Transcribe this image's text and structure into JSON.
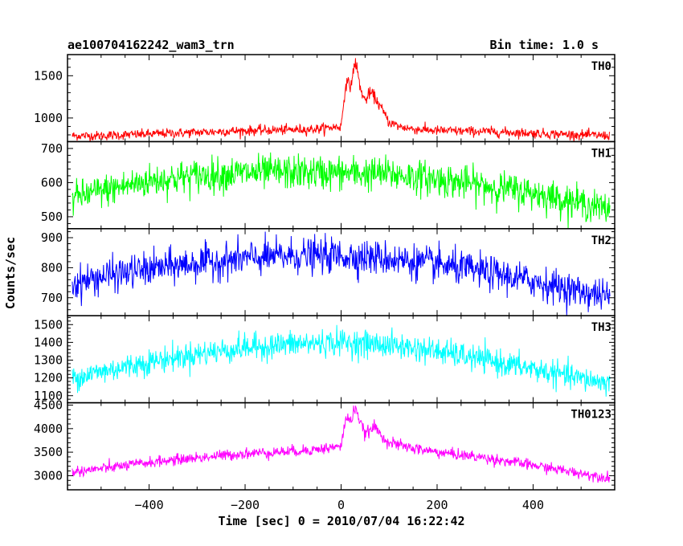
{
  "chart_data": {
    "type": "line",
    "title": "ae100704162242_wam3_trn",
    "bin_time_label": "Bin time: 1.0 s",
    "xlabel": "Time [sec] 0 = 2010/07/04 16:22:42",
    "ylabel": "Counts/sec",
    "xlim": [
      -570,
      570
    ],
    "x_ticks": [
      -400,
      -200,
      0,
      200,
      400
    ],
    "x_tick_labels": [
      "−400",
      "−200",
      "0",
      "200",
      "400"
    ],
    "panels": [
      {
        "label": "TH0",
        "color": "#ff0000",
        "ylim": [
          720,
          1750
        ],
        "y_ticks": [
          1000,
          1500
        ],
        "y_tick_labels": [
          "1000",
          "1500"
        ],
        "series": {
          "x": [
            -560,
            -500,
            -400,
            -300,
            -200,
            -100,
            -50,
            0,
            10,
            20,
            30,
            40,
            50,
            60,
            70,
            80,
            90,
            100,
            120,
            150,
            200,
            300,
            400,
            500,
            560
          ],
          "y": [
            790,
            790,
            810,
            830,
            850,
            860,
            870,
            900,
            1420,
            1380,
            1680,
            1350,
            1200,
            1300,
            1250,
            1150,
            1050,
            950,
            900,
            870,
            850,
            840,
            820,
            800,
            790
          ]
        }
      },
      {
        "label": "TH1",
        "color": "#00ff00",
        "ylim": [
          465,
          720
        ],
        "y_ticks": [
          500,
          600,
          700
        ],
        "y_tick_labels": [
          "500",
          "600",
          "700"
        ],
        "series": {
          "x": [
            -560,
            -500,
            -400,
            -300,
            -200,
            -100,
            0,
            100,
            200,
            300,
            400,
            500,
            560
          ],
          "y": [
            555,
            575,
            605,
            620,
            628,
            630,
            628,
            625,
            610,
            590,
            570,
            540,
            520
          ]
        }
      },
      {
        "label": "TH2",
        "color": "#0000ff",
        "ylim": [
          640,
          930
        ],
        "y_ticks": [
          700,
          800,
          900
        ],
        "y_tick_labels": [
          "700",
          "800",
          "900"
        ],
        "series": {
          "x": [
            -560,
            -500,
            -400,
            -300,
            -200,
            -100,
            0,
            100,
            200,
            300,
            400,
            500,
            560
          ],
          "y": [
            745,
            770,
            795,
            815,
            830,
            840,
            840,
            830,
            810,
            785,
            755,
            720,
            705
          ]
        }
      },
      {
        "label": "TH3",
        "color": "#00ffff",
        "ylim": [
          1060,
          1550
        ],
        "y_ticks": [
          1100,
          1200,
          1300,
          1400,
          1500
        ],
        "y_tick_labels": [
          "1100",
          "1200",
          "1300",
          "1400",
          "1500"
        ],
        "series": {
          "x": [
            -560,
            -500,
            -400,
            -300,
            -200,
            -100,
            0,
            100,
            200,
            300,
            400,
            500,
            560
          ],
          "y": [
            1200,
            1235,
            1290,
            1335,
            1370,
            1390,
            1400,
            1385,
            1350,
            1300,
            1250,
            1195,
            1170
          ]
        }
      },
      {
        "label": "TH0123",
        "color": "#ff00ff",
        "ylim": [
          2700,
          4550
        ],
        "y_ticks": [
          3000,
          3500,
          4000,
          4500
        ],
        "y_tick_labels": [
          "3000",
          "3500",
          "4000",
          "4500"
        ],
        "series": {
          "x": [
            -560,
            -500,
            -400,
            -300,
            -200,
            -100,
            -50,
            0,
            10,
            20,
            30,
            40,
            50,
            60,
            70,
            80,
            90,
            100,
            120,
            150,
            200,
            300,
            400,
            500,
            560
          ],
          "y": [
            3080,
            3150,
            3280,
            3380,
            3470,
            3520,
            3560,
            3620,
            4250,
            4150,
            4480,
            4100,
            3900,
            3950,
            4050,
            3900,
            3800,
            3700,
            3650,
            3580,
            3500,
            3380,
            3220,
            3050,
            2950
          ]
        }
      }
    ]
  }
}
